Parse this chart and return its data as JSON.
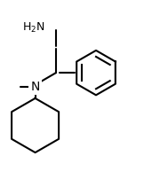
{
  "background_color": "#ffffff",
  "line_color": "#000000",
  "text_color": "#000000",
  "line_width": 1.5,
  "font_size": 9,
  "figsize": [
    1.8,
    2.11
  ],
  "dpi": 100,
  "structure": {
    "nh2_label": "H₂N",
    "methyl_label": "N",
    "n_label": "N",
    "bonds": [
      {
        "from": [
          0.38,
          0.92
        ],
        "to": [
          0.38,
          0.78
        ]
      },
      {
        "from": [
          0.38,
          0.78
        ],
        "to": [
          0.38,
          0.63
        ]
      },
      {
        "from": [
          0.38,
          0.63
        ],
        "to": [
          0.6,
          0.53
        ]
      },
      {
        "from": [
          0.38,
          0.63
        ],
        "to": [
          0.26,
          0.53
        ]
      },
      {
        "from": [
          0.26,
          0.53
        ],
        "to": [
          0.26,
          0.4
        ]
      }
    ]
  }
}
